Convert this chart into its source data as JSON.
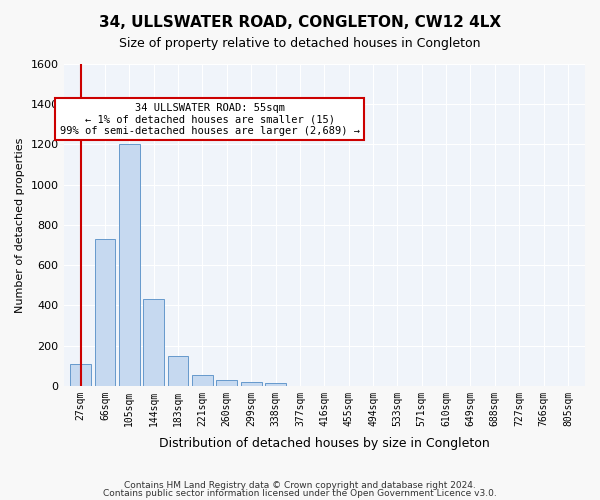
{
  "title": "34, ULLSWATER ROAD, CONGLETON, CW12 4LX",
  "subtitle": "Size of property relative to detached houses in Congleton",
  "xlabel": "Distribution of detached houses by size in Congleton",
  "ylabel": "Number of detached properties",
  "bar_color": "#c6d9f0",
  "bar_edge_color": "#6699cc",
  "background_color": "#f0f4fa",
  "grid_color": "#ffffff",
  "annotation_line_color": "#cc0000",
  "annotation_box_color": "#ffffff",
  "annotation_box_edge": "#cc0000",
  "bin_labels": [
    "27sqm",
    "66sqm",
    "105sqm",
    "144sqm",
    "183sqm",
    "221sqm",
    "260sqm",
    "299sqm",
    "338sqm",
    "377sqm",
    "416sqm",
    "455sqm",
    "494sqm",
    "533sqm",
    "571sqm",
    "610sqm",
    "649sqm",
    "688sqm",
    "727sqm",
    "766sqm",
    "805sqm"
  ],
  "bar_values": [
    110,
    730,
    1200,
    430,
    150,
    55,
    30,
    20,
    15,
    0,
    0,
    0,
    0,
    0,
    0,
    0,
    0,
    0,
    0,
    0,
    0
  ],
  "ylim": [
    0,
    1600
  ],
  "yticks": [
    0,
    200,
    400,
    600,
    800,
    1000,
    1200,
    1400,
    1600
  ],
  "annotation_text": "34 ULLSWATER ROAD: 55sqm\n← 1% of detached houses are smaller (15)\n99% of semi-detached houses are larger (2,689) →",
  "vline_x": 0,
  "footer1": "Contains HM Land Registry data © Crown copyright and database right 2024.",
  "footer2": "Contains public sector information licensed under the Open Government Licence v3.0."
}
